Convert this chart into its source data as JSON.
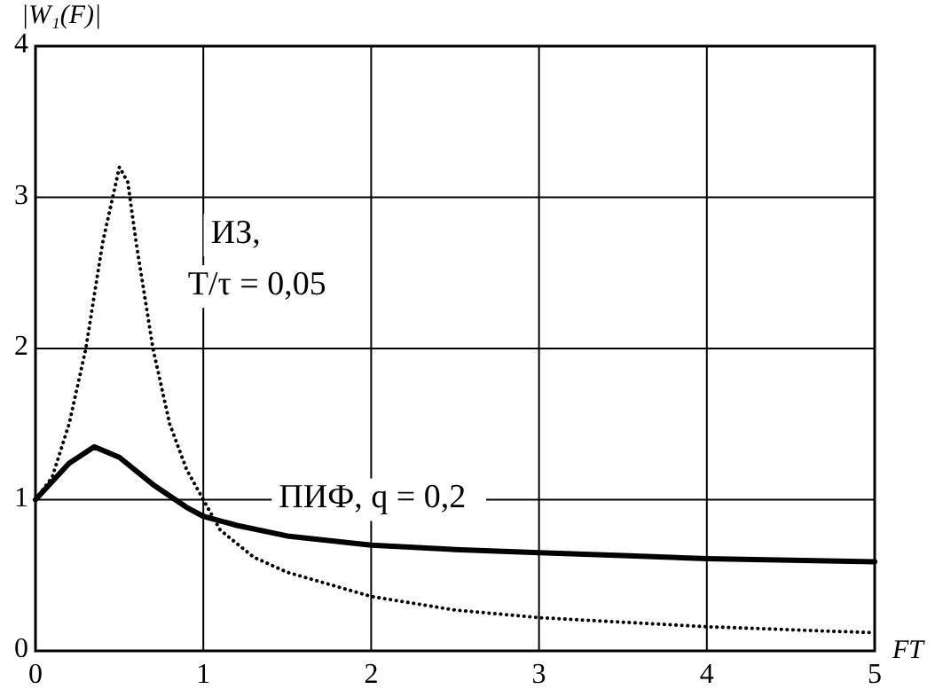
{
  "chart_data": {
    "type": "line",
    "ylabel": "|W₁(F)|",
    "xlabel": "FT",
    "xlim": [
      0,
      5
    ],
    "ylim": [
      0,
      4
    ],
    "xticks": [
      0,
      1,
      2,
      3,
      4,
      5
    ],
    "yticks": [
      0,
      1,
      2,
      3,
      4
    ],
    "grid": true,
    "legend": false,
    "series": [
      {
        "name": "ИЗ,\nT/τ = 0,05",
        "color": "#000000",
        "line_style": "dotted",
        "x": [
          0,
          0.1,
          0.2,
          0.3,
          0.4,
          0.5,
          0.55,
          0.6,
          0.7,
          0.8,
          0.9,
          1.0,
          1.1,
          1.3,
          1.5,
          2,
          2.5,
          3,
          3.5,
          4,
          4.5,
          5
        ],
        "values": [
          1,
          1.15,
          1.5,
          2.0,
          2.7,
          3.2,
          3.1,
          2.7,
          2.0,
          1.5,
          1.2,
          1.0,
          0.8,
          0.62,
          0.52,
          0.36,
          0.27,
          0.22,
          0.19,
          0.16,
          0.14,
          0.12
        ]
      },
      {
        "name": "ПИФ, q = 0,2",
        "color": "#000000",
        "line_style": "solid",
        "x": [
          0,
          0.1,
          0.2,
          0.35,
          0.5,
          0.7,
          0.9,
          1,
          1.2,
          1.5,
          2,
          2.5,
          3,
          3.5,
          4,
          4.5,
          5
        ],
        "values": [
          1,
          1.12,
          1.24,
          1.35,
          1.28,
          1.1,
          0.95,
          0.89,
          0.83,
          0.76,
          0.7,
          0.67,
          0.65,
          0.63,
          0.61,
          0.6,
          0.59
        ]
      }
    ]
  }
}
